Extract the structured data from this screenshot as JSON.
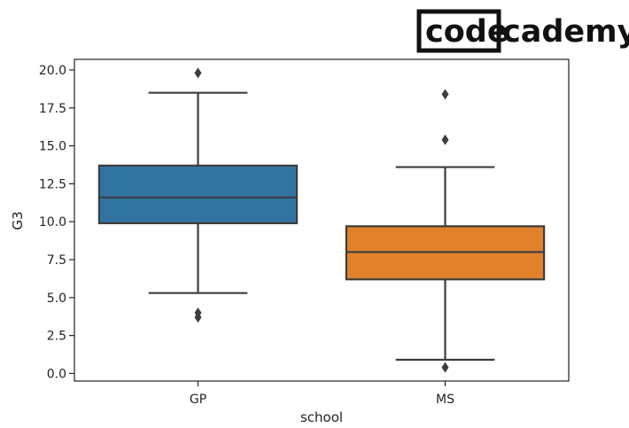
{
  "logo": {
    "part1": "code",
    "part2": "cademy"
  },
  "chart_data": {
    "type": "box",
    "xlabel": "school",
    "ylabel": "G3",
    "ylim": [
      -0.5,
      20.7
    ],
    "yticks": [
      0.0,
      2.5,
      5.0,
      7.5,
      10.0,
      12.5,
      15.0,
      17.5,
      20.0
    ],
    "ytick_labels": [
      "0.0",
      "2.5",
      "5.0",
      "7.5",
      "10.0",
      "12.5",
      "15.0",
      "17.5",
      "20.0"
    ],
    "grid": false,
    "categories": [
      "GP",
      "MS"
    ],
    "boxes": [
      {
        "category": "GP",
        "color": "#3274a1",
        "whisker_low": 5.3,
        "q1": 9.9,
        "median": 11.6,
        "q3": 13.7,
        "whisker_high": 18.5,
        "outliers": [
          3.7,
          4.0,
          19.8
        ]
      },
      {
        "category": "MS",
        "color": "#e1812c",
        "whisker_low": 0.9,
        "q1": 6.2,
        "median": 8.0,
        "q3": 9.7,
        "whisker_high": 13.6,
        "outliers": [
          0.4,
          15.4,
          18.4
        ]
      }
    ]
  }
}
